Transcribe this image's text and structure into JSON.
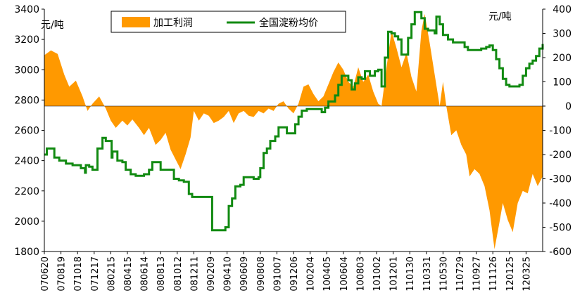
{
  "chart_data": {
    "type": "area+line",
    "left_unit": "元/吨",
    "right_unit": "元/吨",
    "left_axis": {
      "min": 1800,
      "max": 3400,
      "ticks": [
        1800,
        2000,
        2200,
        2400,
        2600,
        2800,
        3000,
        3200,
        3400
      ]
    },
    "right_axis": {
      "min": -600,
      "max": 400,
      "ticks": [
        -600,
        -500,
        -400,
        -300,
        -200,
        -100,
        0,
        100,
        200,
        300,
        400
      ]
    },
    "x_labels": [
      "070620",
      "070819",
      "071018",
      "071217",
      "080215",
      "080415",
      "080614",
      "080813",
      "081012",
      "081211",
      "090209",
      "090410",
      "090609",
      "090808",
      "091007",
      "091206",
      "100204",
      "100405",
      "100604",
      "100803",
      "101002",
      "101201",
      "110130",
      "110331",
      "110530",
      "110729",
      "110927",
      "111126",
      "120125",
      "120325"
    ],
    "legend": {
      "profit": "加工利润",
      "price": "全国淀粉均价"
    },
    "colors": {
      "profit": "#FF9900",
      "price": "#118A11",
      "axis": "#000000"
    },
    "series_profit_right_axis": {
      "name": "加工利润",
      "points": [
        [
          0.0,
          210
        ],
        [
          0.4,
          230
        ],
        [
          0.8,
          215
        ],
        [
          1.2,
          130
        ],
        [
          1.5,
          80
        ],
        [
          1.9,
          105
        ],
        [
          2.3,
          40
        ],
        [
          2.6,
          -20
        ],
        [
          2.9,
          10
        ],
        [
          3.3,
          40
        ],
        [
          3.7,
          -10
        ],
        [
          4.0,
          -60
        ],
        [
          4.3,
          -90
        ],
        [
          4.7,
          -60
        ],
        [
          5.0,
          -80
        ],
        [
          5.3,
          -55
        ],
        [
          5.7,
          -90
        ],
        [
          6.0,
          -120
        ],
        [
          6.3,
          -90
        ],
        [
          6.7,
          -160
        ],
        [
          7.0,
          -140
        ],
        [
          7.3,
          -110
        ],
        [
          7.6,
          -180
        ],
        [
          7.9,
          -220
        ],
        [
          8.2,
          -260
        ],
        [
          8.5,
          -200
        ],
        [
          8.8,
          -130
        ],
        [
          9.0,
          -20
        ],
        [
          9.3,
          -60
        ],
        [
          9.6,
          -30
        ],
        [
          9.9,
          -40
        ],
        [
          10.2,
          -70
        ],
        [
          10.5,
          -60
        ],
        [
          10.8,
          -45
        ],
        [
          11.1,
          -20
        ],
        [
          11.4,
          -70
        ],
        [
          11.7,
          -30
        ],
        [
          12.0,
          -20
        ],
        [
          12.3,
          -40
        ],
        [
          12.6,
          -45
        ],
        [
          12.9,
          -20
        ],
        [
          13.2,
          -30
        ],
        [
          13.5,
          -10
        ],
        [
          13.8,
          -20
        ],
        [
          14.1,
          10
        ],
        [
          14.4,
          20
        ],
        [
          14.7,
          -10
        ],
        [
          15.0,
          -30
        ],
        [
          15.3,
          10
        ],
        [
          15.6,
          80
        ],
        [
          15.9,
          90
        ],
        [
          16.2,
          50
        ],
        [
          16.5,
          20
        ],
        [
          16.8,
          40
        ],
        [
          17.1,
          90
        ],
        [
          17.4,
          140
        ],
        [
          17.7,
          180
        ],
        [
          18.0,
          150
        ],
        [
          18.3,
          100
        ],
        [
          18.6,
          80
        ],
        [
          18.9,
          160
        ],
        [
          19.2,
          100
        ],
        [
          19.5,
          130
        ],
        [
          19.8,
          60
        ],
        [
          20.1,
          10
        ],
        [
          20.3,
          0
        ],
        [
          20.6,
          160
        ],
        [
          20.9,
          310
        ],
        [
          21.2,
          240
        ],
        [
          21.5,
          160
        ],
        [
          21.8,
          220
        ],
        [
          22.1,
          120
        ],
        [
          22.4,
          60
        ],
        [
          22.7,
          310
        ],
        [
          22.9,
          380
        ],
        [
          23.2,
          260
        ],
        [
          23.5,
          130
        ],
        [
          23.8,
          0
        ],
        [
          24.0,
          100
        ],
        [
          24.2,
          0
        ],
        [
          24.5,
          -120
        ],
        [
          24.8,
          -100
        ],
        [
          25.1,
          -160
        ],
        [
          25.4,
          -200
        ],
        [
          25.6,
          -290
        ],
        [
          25.9,
          -260
        ],
        [
          26.2,
          -280
        ],
        [
          26.5,
          -330
        ],
        [
          26.8,
          -430
        ],
        [
          27.1,
          -590
        ],
        [
          27.4,
          -480
        ],
        [
          27.6,
          -400
        ],
        [
          27.9,
          -470
        ],
        [
          28.2,
          -520
        ],
        [
          28.5,
          -400
        ],
        [
          28.8,
          -350
        ],
        [
          29.1,
          -360
        ],
        [
          29.4,
          -280
        ],
        [
          29.7,
          -330
        ],
        [
          30.0,
          -290
        ]
      ]
    },
    "series_price_left_axis": {
      "name": "全国淀粉均价",
      "points": [
        [
          0.0,
          2440
        ],
        [
          0.15,
          2480
        ],
        [
          0.5,
          2480
        ],
        [
          0.6,
          2420
        ],
        [
          0.9,
          2400
        ],
        [
          1.3,
          2380
        ],
        [
          1.7,
          2370
        ],
        [
          2.2,
          2350
        ],
        [
          2.4,
          2350
        ],
        [
          2.45,
          2320
        ],
        [
          2.5,
          2370
        ],
        [
          2.7,
          2360
        ],
        [
          2.9,
          2340
        ],
        [
          3.1,
          2340
        ],
        [
          3.2,
          2480
        ],
        [
          3.4,
          2480
        ],
        [
          3.5,
          2550
        ],
        [
          3.7,
          2530
        ],
        [
          4.0,
          2530
        ],
        [
          4.05,
          2420
        ],
        [
          4.1,
          2460
        ],
        [
          4.4,
          2400
        ],
        [
          4.7,
          2390
        ],
        [
          4.9,
          2340
        ],
        [
          5.2,
          2310
        ],
        [
          5.5,
          2300
        ],
        [
          5.8,
          2300
        ],
        [
          6.0,
          2310
        ],
        [
          6.3,
          2340
        ],
        [
          6.5,
          2390
        ],
        [
          6.8,
          2390
        ],
        [
          7.0,
          2340
        ],
        [
          7.3,
          2340
        ],
        [
          7.6,
          2340
        ],
        [
          7.8,
          2280
        ],
        [
          8.1,
          2270
        ],
        [
          8.4,
          2260
        ],
        [
          8.6,
          2260
        ],
        [
          8.7,
          2180
        ],
        [
          8.9,
          2160
        ],
        [
          9.2,
          2160
        ],
        [
          9.5,
          2160
        ],
        [
          9.8,
          2160
        ],
        [
          10.0,
          2160
        ],
        [
          10.1,
          1940
        ],
        [
          10.3,
          1940
        ],
        [
          10.6,
          1940
        ],
        [
          10.9,
          1960
        ],
        [
          11.1,
          2100
        ],
        [
          11.3,
          2150
        ],
        [
          11.5,
          2230
        ],
        [
          11.8,
          2240
        ],
        [
          12.0,
          2290
        ],
        [
          12.3,
          2290
        ],
        [
          12.6,
          2280
        ],
        [
          12.9,
          2290
        ],
        [
          13.0,
          2350
        ],
        [
          13.2,
          2450
        ],
        [
          13.4,
          2480
        ],
        [
          13.6,
          2530
        ],
        [
          13.9,
          2560
        ],
        [
          14.1,
          2620
        ],
        [
          14.3,
          2620
        ],
        [
          14.6,
          2580
        ],
        [
          14.9,
          2580
        ],
        [
          15.1,
          2640
        ],
        [
          15.3,
          2690
        ],
        [
          15.5,
          2730
        ],
        [
          15.8,
          2740
        ],
        [
          16.0,
          2740
        ],
        [
          16.2,
          2740
        ],
        [
          16.5,
          2740
        ],
        [
          16.7,
          2720
        ],
        [
          16.9,
          2750
        ],
        [
          17.1,
          2790
        ],
        [
          17.3,
          2790
        ],
        [
          17.5,
          2830
        ],
        [
          17.7,
          2900
        ],
        [
          17.9,
          2960
        ],
        [
          18.1,
          2960
        ],
        [
          18.3,
          2930
        ],
        [
          18.5,
          2870
        ],
        [
          18.7,
          2910
        ],
        [
          18.9,
          2950
        ],
        [
          19.1,
          2940
        ],
        [
          19.3,
          2990
        ],
        [
          19.6,
          2960
        ],
        [
          19.9,
          2990
        ],
        [
          20.1,
          3000
        ],
        [
          20.3,
          2890
        ],
        [
          20.5,
          3080
        ],
        [
          20.7,
          3250
        ],
        [
          20.9,
          3240
        ],
        [
          21.1,
          3220
        ],
        [
          21.3,
          3200
        ],
        [
          21.5,
          3100
        ],
        [
          21.7,
          3100
        ],
        [
          21.9,
          3210
        ],
        [
          22.1,
          3300
        ],
        [
          22.3,
          3380
        ],
        [
          22.5,
          3380
        ],
        [
          22.7,
          3340
        ],
        [
          22.9,
          3270
        ],
        [
          23.1,
          3260
        ],
        [
          23.3,
          3260
        ],
        [
          23.5,
          3240
        ],
        [
          23.6,
          3350
        ],
        [
          23.8,
          3300
        ],
        [
          24.0,
          3230
        ],
        [
          24.3,
          3200
        ],
        [
          24.6,
          3180
        ],
        [
          24.9,
          3180
        ],
        [
          25.1,
          3180
        ],
        [
          25.3,
          3150
        ],
        [
          25.5,
          3130
        ],
        [
          25.8,
          3130
        ],
        [
          26.0,
          3130
        ],
        [
          26.3,
          3140
        ],
        [
          26.6,
          3150
        ],
        [
          26.8,
          3160
        ],
        [
          27.0,
          3130
        ],
        [
          27.2,
          3070
        ],
        [
          27.4,
          3010
        ],
        [
          27.6,
          2940
        ],
        [
          27.8,
          2900
        ],
        [
          28.0,
          2890
        ],
        [
          28.2,
          2890
        ],
        [
          28.4,
          2890
        ],
        [
          28.6,
          2900
        ],
        [
          28.8,
          2960
        ],
        [
          29.0,
          3010
        ],
        [
          29.2,
          3040
        ],
        [
          29.4,
          3060
        ],
        [
          29.6,
          3090
        ],
        [
          29.8,
          3140
        ],
        [
          30.0,
          3170
        ]
      ]
    }
  }
}
